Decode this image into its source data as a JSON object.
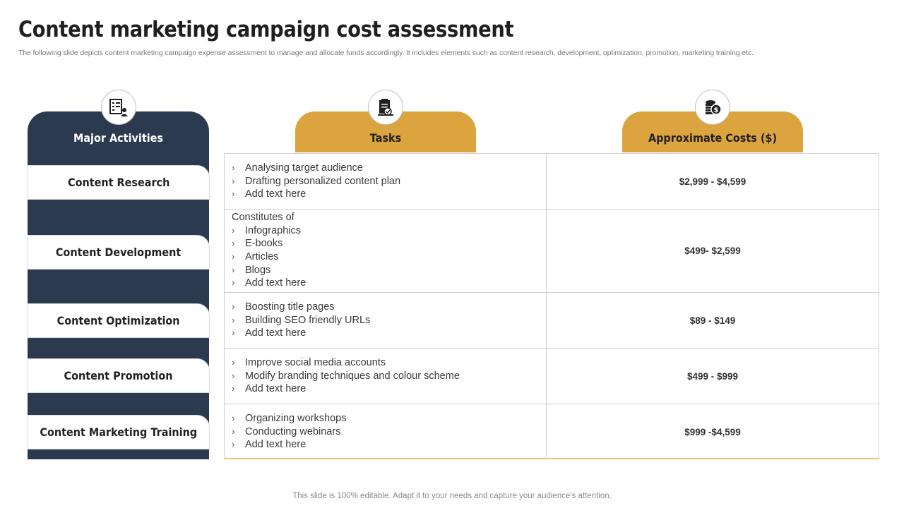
{
  "title": "Content marketing campaign cost assessment",
  "subtitle": "The following slide depicts content marketing campaign expense assessment to manage and allocate funds accordingly. It includes elements such as content research, development, optimization, promotion, marketing training etc.",
  "columns": {
    "activities": {
      "header": "Major Activities",
      "icon": "activities-icon"
    },
    "tasks": {
      "header": "Tasks",
      "icon": "tasks-icon"
    },
    "costs": {
      "header": "Approximate Costs ($)",
      "icon": "coins-icon"
    }
  },
  "colors": {
    "navy": "#2b3a4f",
    "gold": "#dba43f"
  },
  "rows": [
    {
      "activity": "Content Research",
      "intro": "",
      "tasks": [
        "Analysing target audience",
        "Drafting personalized content plan",
        "Add text here"
      ],
      "cost": "$2,999 - $4,599"
    },
    {
      "activity": "Content Development",
      "intro": "Constitutes of",
      "tasks": [
        "Infographics",
        "E-books",
        "Articles",
        "Blogs",
        "Add text here"
      ],
      "cost": "$499- $2,599"
    },
    {
      "activity": "Content Optimization",
      "intro": "",
      "tasks": [
        "Boosting title pages",
        "Building SEO friendly URLs",
        "Add text here"
      ],
      "cost": "$89 - $149"
    },
    {
      "activity": "Content Promotion",
      "intro": "",
      "tasks": [
        "Improve social media accounts",
        "Modify branding techniques and colour scheme",
        "Add text here"
      ],
      "cost": "$499 - $999"
    },
    {
      "activity": "Content Marketing Training",
      "intro": "",
      "tasks": [
        "Organizing workshops",
        "Conducting webinars",
        "Add text here"
      ],
      "cost": "$999 -$4,599"
    }
  ],
  "footer": "This slide is 100% editable. Adapt it to your needs and capture your audience's attention."
}
